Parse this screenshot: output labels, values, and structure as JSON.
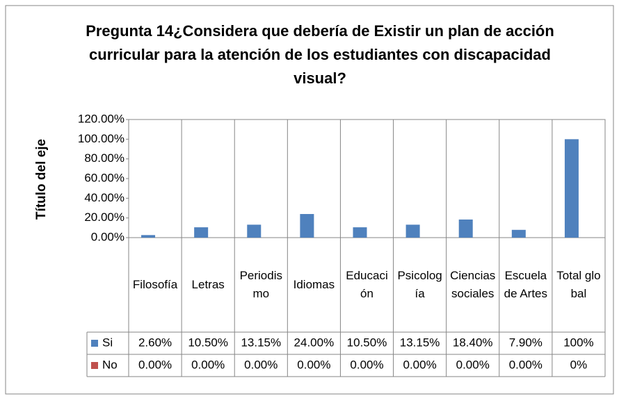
{
  "chart_data": {
    "type": "bar",
    "title": "Pregunta 14¿Considera que debería de Existir un plan de acción curricular para la atención de los estudiantes con discapacidad visual?",
    "ylabel": "Título del eje",
    "categories": [
      "Filosofía",
      "Letras",
      "Periodismo",
      "Idiomas",
      "Educación",
      "Psicología",
      "Ciencias sociales",
      "Escuela de Artes",
      "Total global"
    ],
    "series": [
      {
        "name": "Si",
        "color": "#4f81bd",
        "values": [
          2.6,
          10.5,
          13.15,
          24,
          10.5,
          13.15,
          18.4,
          7.9,
          100
        ],
        "value_labels": [
          "2.60%",
          "10.50%",
          "13.15%",
          "24.00%",
          "10.50%",
          "13.15%",
          "18.40%",
          "7.90%",
          "100%"
        ]
      },
      {
        "name": "No",
        "color": "#c0504d",
        "values": [
          0,
          0,
          0,
          0,
          0,
          0,
          0,
          0,
          0
        ],
        "value_labels": [
          "0.00%",
          "0.00%",
          "0.00%",
          "0.00%",
          "0.00%",
          "0.00%",
          "0.00%",
          "0.00%",
          "0%"
        ]
      }
    ],
    "ylim": [
      0,
      120
    ],
    "yticks": [
      {
        "value": 0,
        "label": "0.00%"
      },
      {
        "value": 20,
        "label": "20.00%"
      },
      {
        "value": 40,
        "label": "40.00%"
      },
      {
        "value": 60,
        "label": "60.00%"
      },
      {
        "value": 80,
        "label": "80.00%"
      },
      {
        "value": 100,
        "label": "100.00%"
      },
      {
        "value": 120,
        "label": "120.00%"
      }
    ],
    "grid": false
  }
}
